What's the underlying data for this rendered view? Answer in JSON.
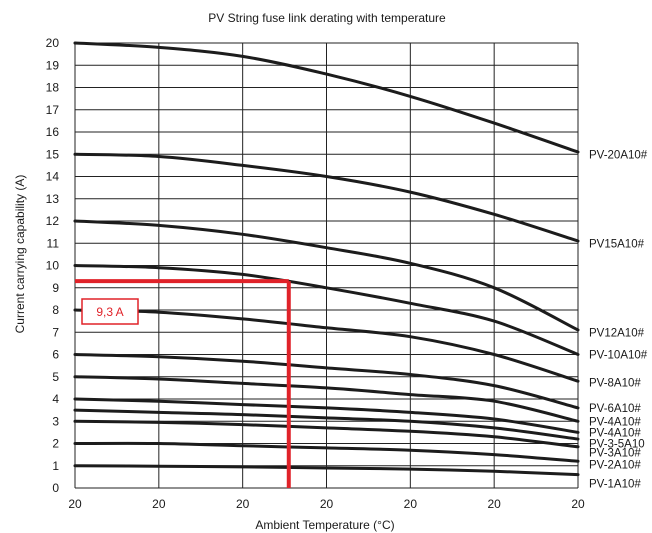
{
  "chart_data": {
    "type": "line",
    "title": "PV String fuse link derating with temperature",
    "xlabel": "Ambient Temperature (°C)",
    "ylabel": "Current carrying capability (A)",
    "x_tick_labels": [
      "20",
      "20",
      "20",
      "20",
      "20",
      "20",
      "20"
    ],
    "xlim": [
      0,
      6
    ],
    "ylim": [
      0,
      20
    ],
    "y_ticks": [
      0,
      1,
      2,
      3,
      4,
      5,
      6,
      7,
      8,
      9,
      10,
      11,
      12,
      13,
      14,
      15,
      16,
      17,
      18,
      19,
      20
    ],
    "grid": true,
    "series": [
      {
        "name": "PV-20A10#",
        "x": [
          0,
          1,
          2,
          3,
          4,
          5,
          6
        ],
        "y": [
          20,
          19.8,
          19.4,
          18.6,
          17.6,
          16.4,
          15.1
        ]
      },
      {
        "name": "PV15A10#",
        "x": [
          0,
          1,
          2,
          3,
          4,
          5,
          6
        ],
        "y": [
          15,
          14.9,
          14.5,
          14.0,
          13.3,
          12.3,
          11.1
        ]
      },
      {
        "name": "PV12A10#",
        "x": [
          0,
          1,
          2,
          3,
          4,
          5,
          6
        ],
        "y": [
          12,
          11.8,
          11.4,
          10.8,
          10.1,
          9.0,
          7.1
        ]
      },
      {
        "name": "PV-10A10#",
        "x": [
          0,
          1,
          2,
          3,
          4,
          5,
          6
        ],
        "y": [
          10,
          9.9,
          9.6,
          9.0,
          8.3,
          7.5,
          6.0
        ]
      },
      {
        "name": "PV-8A10#",
        "x": [
          0,
          1,
          2,
          3,
          4,
          5,
          6
        ],
        "y": [
          8,
          7.9,
          7.6,
          7.2,
          6.8,
          6.0,
          4.8
        ]
      },
      {
        "name": "PV-6A10#",
        "x": [
          0,
          1,
          2,
          3,
          4,
          5,
          6
        ],
        "y": [
          6,
          5.9,
          5.7,
          5.4,
          5.1,
          4.6,
          3.6
        ]
      },
      {
        "name": "PV-4A10#",
        "x": [
          0,
          1,
          2,
          3,
          4,
          5,
          6
        ],
        "y": [
          5,
          4.9,
          4.7,
          4.5,
          4.2,
          3.9,
          3.0
        ]
      },
      {
        "name": "PV-4A10#",
        "x": [
          0,
          1,
          2,
          3,
          4,
          5,
          6
        ],
        "y": [
          4,
          3.9,
          3.75,
          3.6,
          3.4,
          3.1,
          2.5
        ]
      },
      {
        "name": "PV-3-5A10",
        "x": [
          0,
          1,
          2,
          3,
          4,
          5,
          6
        ],
        "y": [
          3.5,
          3.4,
          3.3,
          3.15,
          3.0,
          2.7,
          2.2
        ]
      },
      {
        "name": "PV-3A10#",
        "x": [
          0,
          1,
          2,
          3,
          4,
          5,
          6
        ],
        "y": [
          3,
          2.95,
          2.85,
          2.7,
          2.55,
          2.3,
          1.85
        ]
      },
      {
        "name": "PV-2A10#",
        "x": [
          0,
          1,
          2,
          3,
          4,
          5,
          6
        ],
        "y": [
          2,
          2.0,
          1.9,
          1.8,
          1.7,
          1.5,
          1.2
        ]
      },
      {
        "name": "PV-1A10#",
        "x": [
          0,
          1,
          2,
          3,
          4,
          5,
          6
        ],
        "y": [
          1,
          0.98,
          0.95,
          0.9,
          0.85,
          0.75,
          0.6
        ]
      }
    ],
    "series_label_y": [
      15,
      11,
      7,
      6,
      4.75,
      3.6,
      3.0,
      2.5,
      2.0,
      1.6,
      1.05,
      0.2
    ],
    "annotation": {
      "label": "9,3 A",
      "x": 2.55,
      "y": 9.3,
      "box_label_y": 8.0,
      "color": "#e02229"
    }
  }
}
